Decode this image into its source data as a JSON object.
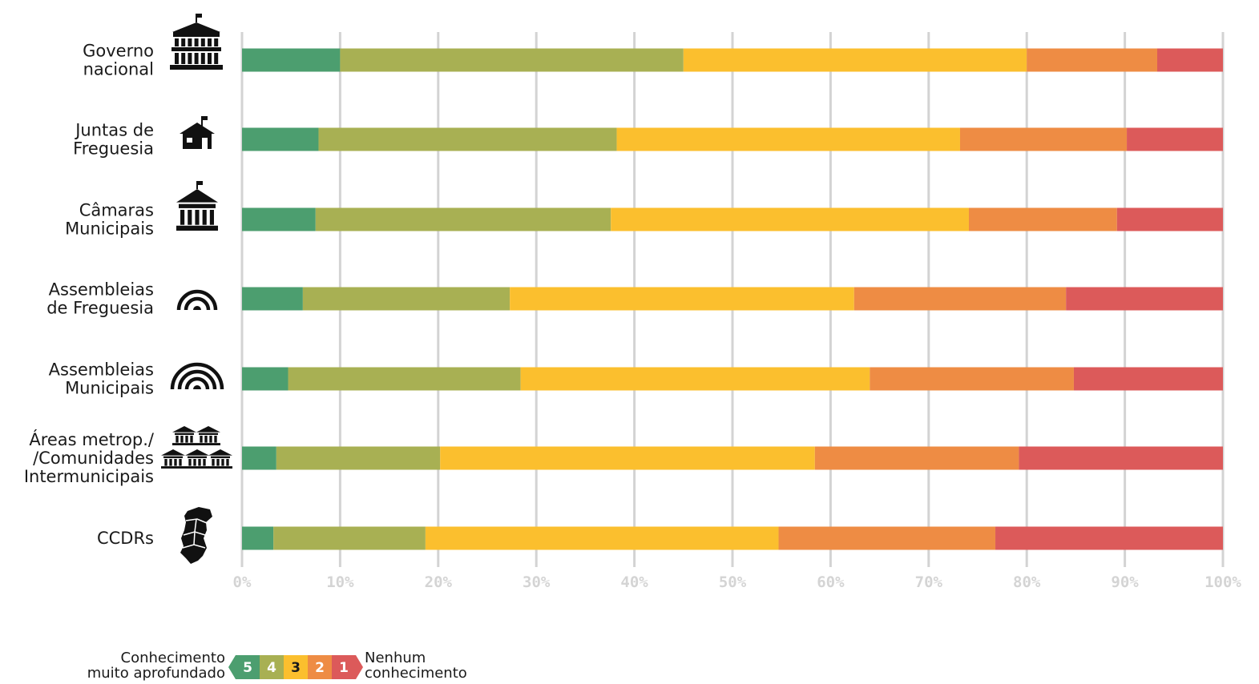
{
  "chart_data": {
    "type": "bar",
    "orientation": "horizontal",
    "stacked": true,
    "normalized": true,
    "categories": [
      [
        "Governo",
        "nacional"
      ],
      [
        "Juntas de",
        "Freguesia"
      ],
      [
        "Câmaras",
        "Municipais"
      ],
      [
        "Assembleias",
        "de Freguesia"
      ],
      [
        "Assembleias",
        "Municipais"
      ],
      [
        "Áreas metrop./",
        "/Comunidades",
        "Intermunicipais"
      ],
      [
        "CCDRs"
      ]
    ],
    "category_icons": [
      "government-building-icon",
      "small-house-icon",
      "city-hall-icon",
      "small-assembly-icon",
      "large-assembly-icon",
      "multiple-buildings-icon",
      "portugal-map-icon"
    ],
    "series": [
      {
        "name": "5",
        "color": "#4c9e6f",
        "values": [
          10.0,
          7.8,
          7.5,
          6.2,
          4.7,
          3.5,
          3.2
        ]
      },
      {
        "name": "4",
        "color": "#a8b053",
        "values": [
          35.0,
          30.4,
          30.1,
          21.1,
          23.7,
          16.7,
          15.5
        ]
      },
      {
        "name": "3",
        "color": "#fbbf2e",
        "values": [
          35.0,
          35.0,
          36.5,
          35.1,
          35.6,
          38.2,
          36.0
        ]
      },
      {
        "name": "2",
        "color": "#ee8c44",
        "values": [
          13.3,
          17.0,
          15.1,
          21.6,
          20.8,
          20.8,
          22.1
        ]
      },
      {
        "name": "1",
        "color": "#dc5a5a",
        "values": [
          6.7,
          9.8,
          10.8,
          16.0,
          15.2,
          20.8,
          23.2
        ]
      }
    ],
    "xlim": [
      0,
      100
    ],
    "x_ticks": [
      "0%",
      "10%",
      "20%",
      "30%",
      "40%",
      "50%",
      "60%",
      "70%",
      "80%",
      "90%",
      "100%"
    ],
    "grid": true,
    "legend": {
      "placement": "bottom-left",
      "left_label": [
        "Conhecimento",
        "muito aprofundado"
      ],
      "right_label": [
        "Nenhum",
        "conhecimento"
      ]
    }
  }
}
